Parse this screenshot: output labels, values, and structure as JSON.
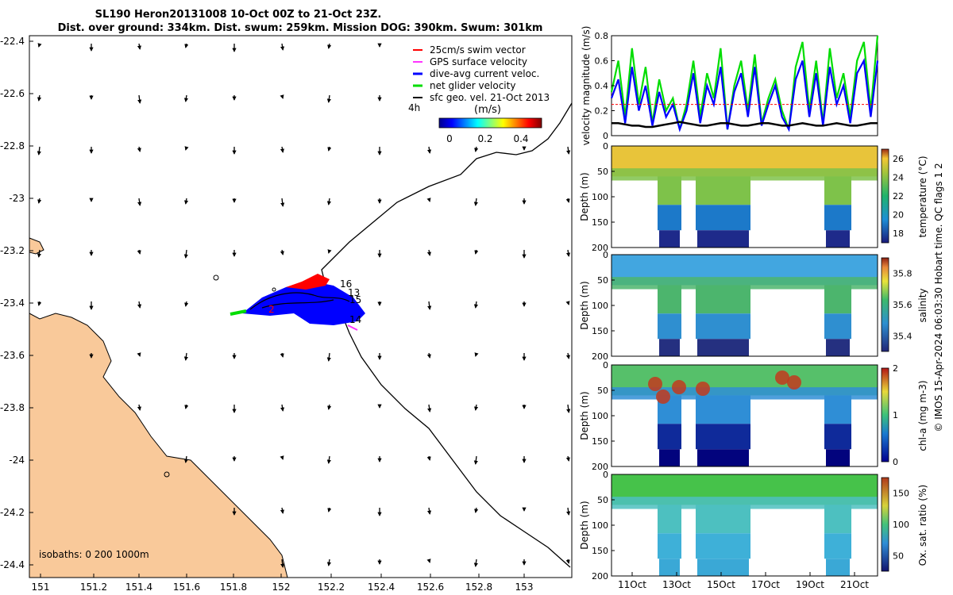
{
  "header": {
    "line1": "SL190 Heron20131008 10-Oct 00Z to 21-Oct 23Z.",
    "line2": "Dist. over ground: 334km. Dist. swum: 259km. Mission DOG: 390km. Swum: 301km"
  },
  "colors": {
    "land": "#f9c99a",
    "swim_vector": "#ff0000",
    "gps_velocity": "#ff33ff",
    "current_velocity": "#0000ff",
    "net_velocity": "#00dd00",
    "geo_velocity": "#000000"
  },
  "map": {
    "legend": [
      {
        "label": "25cm/s swim vector",
        "color": "#ff0000"
      },
      {
        "label": "GPS surface velocity",
        "color": "#ff33ff"
      },
      {
        "label": "dive-avg current veloc.",
        "color": "#0000ff"
      },
      {
        "label": "net glider velocity",
        "color": "#00dd00"
      },
      {
        "label": "sfc geo. vel. 21-Oct 2013",
        "color": "#000000"
      }
    ],
    "colorbar_label": "(m/s)",
    "colorbar_side_label": "4h",
    "colorbar_ticks": [
      "0",
      "0.2",
      "0.4"
    ],
    "isobaths_label": "isobaths: 0   200  1000m",
    "dive_labels": [
      "16",
      "13",
      "15",
      "14",
      "2"
    ],
    "x_ticks": [
      "151",
      "151.2",
      "151.4",
      "151.6",
      "151.8",
      "152",
      "152.2",
      "152.4",
      "152.6",
      "152.8",
      "153"
    ],
    "y_ticks": [
      "-22.4",
      "-22.6",
      "-22.8",
      "-23",
      "-23.2",
      "-23.4",
      "-23.6",
      "-23.8",
      "-24",
      "-24.2",
      "-24.4"
    ]
  },
  "chart_data": [
    {
      "type": "line",
      "title": "",
      "ylabel": "velocity magnitude (m/s)",
      "ylim": [
        0,
        0.8
      ],
      "yticks": [
        "0",
        "0.2",
        "0.4",
        "0.6",
        "0.8"
      ],
      "x_domain_days": "10-Oct to 21-Oct",
      "series": [
        {
          "color": "#00dd00",
          "values": [
            0.35,
            0.6,
            0.15,
            0.7,
            0.25,
            0.55,
            0.1,
            0.45,
            0.2,
            0.3,
            0.05,
            0.25,
            0.6,
            0.15,
            0.5,
            0.3,
            0.7,
            0.05,
            0.4,
            0.6,
            0.2,
            0.65,
            0.1,
            0.3,
            0.45,
            0.2,
            0.05,
            0.55,
            0.75,
            0.2,
            0.6,
            0.1,
            0.7,
            0.3,
            0.5,
            0.15,
            0.6,
            0.75,
            0.2,
            0.8
          ]
        },
        {
          "color": "#0000ff",
          "values": [
            0.3,
            0.45,
            0.1,
            0.55,
            0.2,
            0.4,
            0.08,
            0.35,
            0.15,
            0.25,
            0.05,
            0.2,
            0.5,
            0.1,
            0.4,
            0.25,
            0.55,
            0.05,
            0.35,
            0.5,
            0.15,
            0.55,
            0.08,
            0.25,
            0.4,
            0.15,
            0.05,
            0.45,
            0.6,
            0.15,
            0.5,
            0.08,
            0.55,
            0.25,
            0.4,
            0.1,
            0.5,
            0.6,
            0.15,
            0.6
          ]
        },
        {
          "color": "#000000",
          "values": [
            0.1,
            0.1,
            0.09,
            0.08,
            0.08,
            0.07,
            0.07,
            0.08,
            0.09,
            0.1,
            0.11,
            0.1,
            0.09,
            0.08,
            0.08,
            0.09,
            0.1,
            0.1,
            0.09,
            0.08,
            0.08,
            0.09,
            0.1,
            0.1,
            0.09,
            0.08,
            0.08,
            0.09,
            0.1,
            0.09,
            0.08,
            0.08,
            0.09,
            0.1,
            0.09,
            0.08,
            0.08,
            0.09,
            0.1,
            0.1
          ]
        },
        {
          "color": "#ff0000",
          "values": [
            0.25,
            0.25,
            0.25,
            0.25,
            0.25,
            0.25,
            0.25,
            0.25,
            0.25,
            0.25,
            0.25,
            0.25,
            0.25,
            0.25,
            0.25,
            0.25,
            0.25,
            0.25,
            0.25,
            0.25,
            0.25,
            0.25,
            0.25,
            0.25,
            0.25,
            0.25,
            0.25,
            0.25,
            0.25,
            0.25,
            0.25,
            0.25,
            0.25,
            0.25,
            0.25,
            0.25,
            0.25,
            0.25,
            0.25,
            0.25
          ]
        }
      ]
    },
    {
      "type": "heatmap",
      "ylabel": "Depth (m)",
      "colorbar_label": "temperature (°C)",
      "colorbar_ticks": [
        "18",
        "20",
        "22",
        "24",
        "26"
      ],
      "ylim": [
        200,
        0
      ],
      "yticks": [
        "0",
        "50",
        "100",
        "150",
        "200"
      ]
    },
    {
      "type": "heatmap",
      "ylabel": "Depth (m)",
      "colorbar_label": "salinity",
      "colorbar_ticks": [
        "35.4",
        "35.6",
        "35.8"
      ],
      "ylim": [
        200,
        0
      ],
      "yticks": [
        "0",
        "50",
        "100",
        "150",
        "200"
      ]
    },
    {
      "type": "heatmap",
      "ylabel": "Depth (m)",
      "colorbar_label": "chl-a (mg m-3)",
      "colorbar_ticks": [
        "0",
        "1",
        "2"
      ],
      "ylim": [
        200,
        0
      ],
      "yticks": [
        "0",
        "50",
        "100",
        "150",
        "200"
      ]
    },
    {
      "type": "heatmap",
      "ylabel": "Depth (m)",
      "colorbar_label": "Ox. sat. ratio (%)",
      "colorbar_ticks": [
        "50",
        "100",
        "150"
      ],
      "ylim": [
        200,
        0
      ],
      "yticks": [
        "0",
        "50",
        "100",
        "150",
        "200"
      ],
      "xticks": [
        "11Oct",
        "13Oct",
        "15Oct",
        "17Oct",
        "19Oct",
        "21Oct"
      ]
    }
  ],
  "footer": {
    "credit": "© IMOS 15-Apr-2024 06:03:30 Hobart time. QC flags 1  2"
  }
}
